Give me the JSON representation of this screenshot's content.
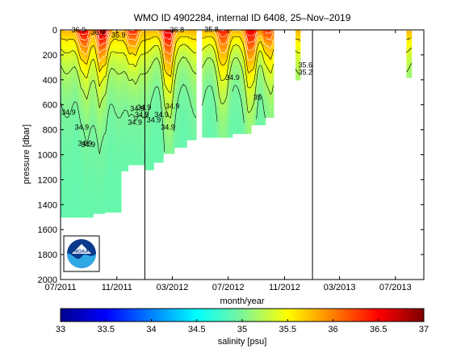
{
  "chart_data": {
    "type": "heatmap",
    "title": "WMO ID 4902284, internal ID 6408, 25–Nov–2019",
    "xlabel": "month/year",
    "ylabel": "pressure [dbar]",
    "xlim": [
      "2011-07-01",
      "2013-09-01"
    ],
    "ylim": [
      0,
      2000
    ],
    "y_reversed": true,
    "x_ticks": [
      {
        "date": "2011-07-01",
        "label": "07/2011"
      },
      {
        "date": "2011-11-01",
        "label": "11/2011"
      },
      {
        "date": "2012-03-01",
        "label": "03/2012"
      },
      {
        "date": "2012-07-01",
        "label": "07/2012"
      },
      {
        "date": "2012-11-01",
        "label": "11/2012"
      },
      {
        "date": "2013-03-01",
        "label": "03/2013"
      },
      {
        "date": "2013-07-01",
        "label": "07/2013"
      }
    ],
    "y_ticks": [
      0,
      200,
      400,
      600,
      800,
      1000,
      1200,
      1400,
      1600,
      1800,
      2000
    ],
    "year_lines": [
      "2012-01-01",
      "2013-01-01"
    ],
    "colorbar": {
      "label": "salinity [psu]",
      "range": [
        33,
        37
      ],
      "ticks": [
        "33",
        "33.5",
        "34",
        "34.5",
        "35",
        "35.5",
        "36",
        "36.5",
        "37"
      ]
    },
    "deep_value": 34.9,
    "profiles": [
      {
        "start": "2011-07-01",
        "end": "2011-09-10",
        "max_pressure": 1500
      },
      {
        "start": "2011-09-10",
        "end": "2011-10-05",
        "max_pressure": 1470
      },
      {
        "start": "2011-10-05",
        "end": "2011-11-10",
        "max_pressure": 1460
      },
      {
        "start": "2011-11-10",
        "end": "2011-11-25",
        "max_pressure": 1130
      },
      {
        "start": "2011-11-25",
        "end": "2012-01-01",
        "max_pressure": 1080
      },
      {
        "start": "2012-01-01",
        "end": "2012-01-20",
        "max_pressure": 1120
      },
      {
        "start": "2012-01-20",
        "end": "2012-02-10",
        "max_pressure": 1060
      },
      {
        "start": "2012-02-10",
        "end": "2012-03-05",
        "max_pressure": 990
      },
      {
        "start": "2012-03-05",
        "end": "2012-04-01",
        "max_pressure": 940
      },
      {
        "start": "2012-04-01",
        "end": "2012-04-22",
        "max_pressure": 880
      },
      {
        "start": "2012-05-05",
        "end": "2012-07-10",
        "max_pressure": 860
      },
      {
        "start": "2012-07-10",
        "end": "2012-08-20",
        "max_pressure": 830
      },
      {
        "start": "2012-08-20",
        "end": "2012-09-20",
        "max_pressure": 760
      },
      {
        "start": "2012-09-20",
        "end": "2012-10-08",
        "max_pressure": 700
      },
      {
        "start": "2012-11-25",
        "end": "2012-12-05",
        "max_pressure": 400
      },
      {
        "start": "2013-07-25",
        "end": "2013-08-05",
        "max_pressure": 380
      }
    ],
    "surface_peaks": [
      {
        "date": "2011-08-20",
        "value": 36.6
      },
      {
        "date": "2011-10-01",
        "value": 36.8
      },
      {
        "date": "2011-12-05",
        "value": 36.4
      },
      {
        "date": "2012-02-20",
        "value": 36.7
      },
      {
        "date": "2012-06-20",
        "value": 36.4
      },
      {
        "date": "2012-08-20",
        "value": 36.6
      },
      {
        "date": "2012-09-25",
        "value": 36.3
      }
    ],
    "contour_labels": [
      {
        "date": "2011-07-25",
        "pressure": 20,
        "text": "36.9"
      },
      {
        "date": "2011-09-05",
        "pressure": 40,
        "text": "36.9"
      },
      {
        "date": "2011-10-20",
        "pressure": 60,
        "text": "35.9"
      },
      {
        "date": "2011-07-03",
        "pressure": 680,
        "text": "34.9"
      },
      {
        "date": "2011-08-01",
        "pressure": 800,
        "text": "34.9"
      },
      {
        "date": "2011-08-15",
        "pressure": 940,
        "text": "34.9"
      },
      {
        "date": "2011-08-08",
        "pressure": 930,
        "text": "34.9"
      },
      {
        "date": "2011-11-30",
        "pressure": 650,
        "text": "34.9"
      },
      {
        "date": "2011-12-10",
        "pressure": 700,
        "text": "34.9"
      },
      {
        "date": "2011-11-25",
        "pressure": 760,
        "text": "34.9"
      },
      {
        "date": "2011-12-15",
        "pressure": 640,
        "text": "34.9"
      },
      {
        "date": "2012-01-05",
        "pressure": 740,
        "text": "34.9"
      },
      {
        "date": "2012-02-05",
        "pressure": 800,
        "text": "34.9"
      },
      {
        "date": "2012-02-15",
        "pressure": 630,
        "text": "34.9"
      },
      {
        "date": "2012-01-22",
        "pressure": 700,
        "text": "34.9"
      },
      {
        "date": "2012-02-25",
        "pressure": 20,
        "text": "36.8"
      },
      {
        "date": "2012-05-10",
        "pressure": 15,
        "text": "35.8"
      },
      {
        "date": "2012-06-25",
        "pressure": 400,
        "text": "34.9"
      },
      {
        "date": "2012-08-25",
        "pressure": 560,
        "text": "35"
      },
      {
        "date": "2012-12-01",
        "pressure": 300,
        "text": "35.6"
      },
      {
        "date": "2012-12-01",
        "pressure": 360,
        "text": "35.2"
      }
    ]
  },
  "logo": {
    "name": "NOAA",
    "text": "NOAA"
  },
  "colors": {
    "axes": "#000000",
    "deep_green": "#7df59a",
    "background": "#ffffff"
  }
}
